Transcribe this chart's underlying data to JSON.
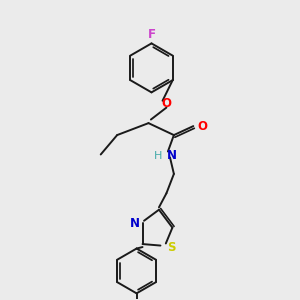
{
  "bg_color": "#ebebeb",
  "bond_color": "#1a1a1a",
  "atom_colors": {
    "F": "#cc44cc",
    "O": "#ff0000",
    "N": "#0000cc",
    "S": "#cccc00",
    "H": "#44aaaa",
    "C": "#1a1a1a"
  },
  "font_size_atoms": 8.5,
  "line_width": 1.4,
  "double_sep": 0.055
}
